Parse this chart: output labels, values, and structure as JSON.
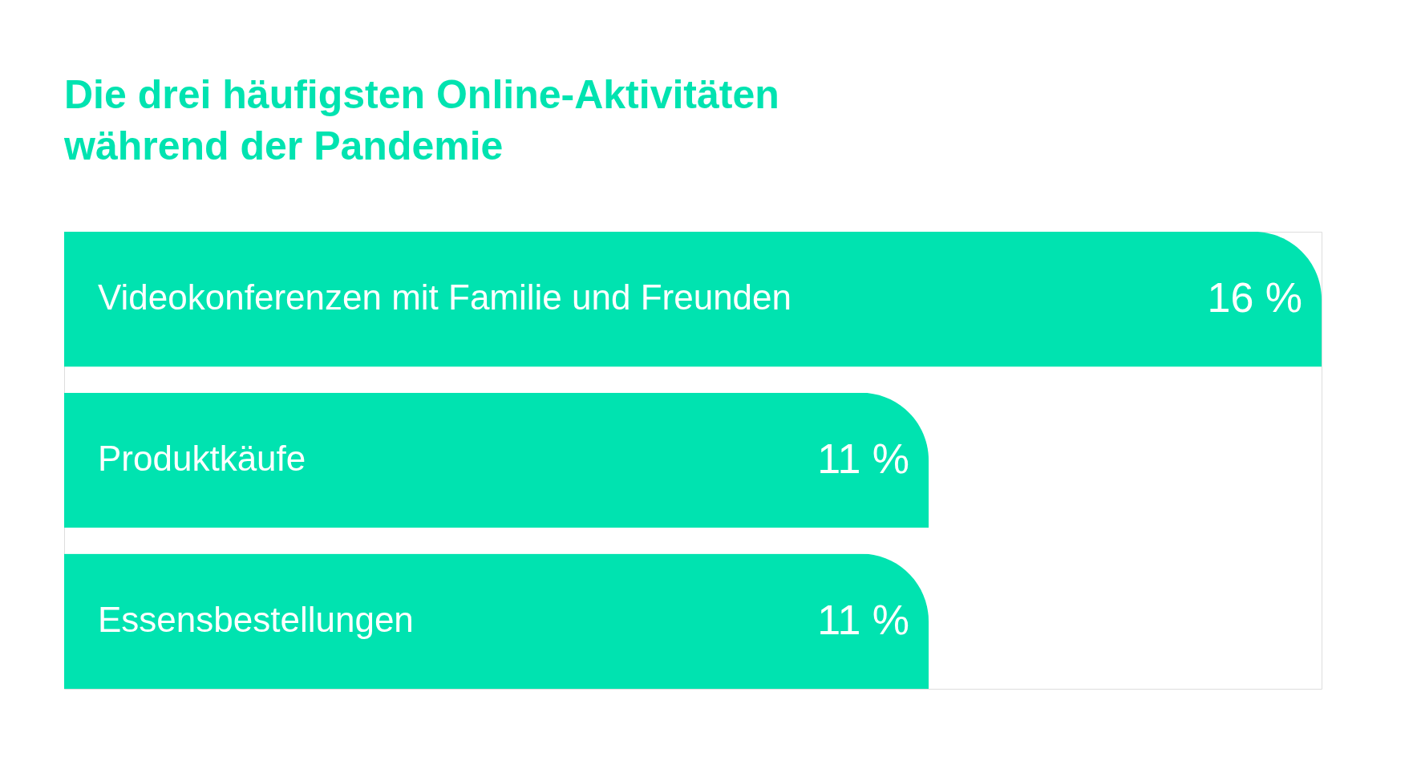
{
  "chart_data": {
    "type": "bar",
    "orientation": "horizontal",
    "title": "Die drei häufigsten Online-Aktivitäten\nwährend der Pandemie",
    "categories": [
      "Videokonferenzen mit Familie und Freunden",
      "Produktkäufe",
      "Essensbestellungen"
    ],
    "values": [
      16,
      11,
      11
    ],
    "value_labels": [
      "16 %",
      "11 %",
      "11 %"
    ],
    "color": "#00e3b0"
  }
}
